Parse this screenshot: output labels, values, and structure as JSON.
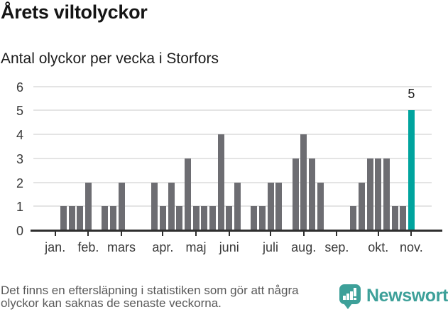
{
  "header": {
    "title": "Årets viltolyckor",
    "subtitle": "Antal olyckor per vecka i Storfors"
  },
  "chart_data": {
    "type": "bar",
    "title": "Årets viltolyckor",
    "subtitle": "Antal olyckor per vecka i Storfors",
    "xlabel": "",
    "ylabel": "Antal olyckor per vecka",
    "x_unit": "vecka",
    "weeks": [
      1,
      2,
      3,
      4,
      5,
      6,
      7,
      8,
      9,
      10,
      11,
      12,
      13,
      14,
      15,
      16,
      17,
      18,
      19,
      20,
      21,
      22,
      23,
      24,
      25,
      26,
      27,
      28,
      29,
      30,
      31,
      32,
      33,
      34,
      35,
      36,
      37,
      38,
      39,
      40,
      41,
      42,
      43,
      44
    ],
    "values": [
      0,
      1,
      1,
      1,
      2,
      0,
      1,
      1,
      2,
      0,
      0,
      0,
      2,
      1,
      2,
      1,
      3,
      1,
      1,
      1,
      4,
      1,
      2,
      0,
      1,
      1,
      2,
      2,
      0,
      3,
      4,
      3,
      2,
      0,
      0,
      0,
      1,
      2,
      3,
      3,
      3,
      1,
      1,
      5
    ],
    "highlight": {
      "week": 44,
      "value": 5,
      "label": "5"
    },
    "months": [
      {
        "label": "jan.",
        "week": 1
      },
      {
        "label": "feb.",
        "week": 5
      },
      {
        "label": "mars",
        "week": 9
      },
      {
        "label": "apr.",
        "week": 14
      },
      {
        "label": "maj",
        "week": 18
      },
      {
        "label": "juni",
        "week": 22
      },
      {
        "label": "juli",
        "week": 27
      },
      {
        "label": "aug.",
        "week": 31
      },
      {
        "label": "sep.",
        "week": 35
      },
      {
        "label": "okt.",
        "week": 40
      },
      {
        "label": "nov.",
        "week": 44
      }
    ],
    "y_ticks": [
      0,
      1,
      2,
      3,
      4,
      5,
      6
    ],
    "ylim": [
      0,
      6
    ],
    "grid": "horizontal",
    "legend": "none",
    "colors": {
      "bar": "#6d6d72",
      "highlight": "#00a49e",
      "gridline": "#e4e4e4",
      "axis": "#2e2e2e",
      "tick_text": "#3a3a3a"
    }
  },
  "footer": {
    "lines": [
      "Det finns en eftersläpning i statistiken som gör att några",
      "olyckor kan saknas de senaste veckorna."
    ],
    "logo_text": "Newsworthy",
    "logo_color": "#3da099"
  }
}
